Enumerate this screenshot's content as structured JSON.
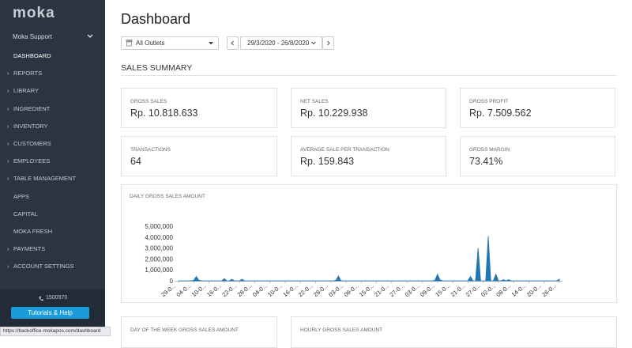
{
  "sidebar": {
    "logo": "moka",
    "account": "Moka Support",
    "menu": [
      "DASHBOARD",
      "REPORTS",
      "LIBRARY",
      "INGREDIENT",
      "INVENTORY",
      "CUSTOMERS",
      "EMPLOYEES",
      "TABLE MANAGEMENT",
      "APPS",
      "CAPITAL",
      "MOKA FRESH",
      "PAYMENTS",
      "ACCOUNT SETTINGS"
    ],
    "phone": "1500970",
    "help_button": "Tutorials & Help"
  },
  "status_bar": "https://backoffice.mokapos.com/dashboard",
  "header": {
    "title": "Dashboard",
    "outlet_filter": "All Outlets",
    "date_range": "29/3/2020 - 26/8/2020"
  },
  "section_title": "SALES SUMMARY",
  "summary_cards": [
    {
      "label": "GROSS SALES",
      "value": "Rp. 10.818.633"
    },
    {
      "label": "NET SALES",
      "value": "Rp. 10.229.938"
    },
    {
      "label": "GROSS PROFIT",
      "value": "Rp. 7.509.562"
    },
    {
      "label": "TRANSACTIONS",
      "value": "64"
    },
    {
      "label": "AVERAGE SALE PER TRANSACTION",
      "value": "Rp. 159.843"
    },
    {
      "label": "GROSS MARGIN",
      "value": "73.41%"
    }
  ],
  "chart_data": {
    "type": "area",
    "title": "DAILY GROSS SALES AMOUNT",
    "color": "#1f77b4",
    "categories": [
      "29-0...",
      null,
      null,
      null,
      null,
      null,
      "04-0...",
      null,
      null,
      null,
      null,
      null,
      "10-0...",
      null,
      null,
      null,
      null,
      null,
      "16-0...",
      null,
      null,
      null,
      null,
      null,
      "22-0...",
      null,
      null,
      null,
      null,
      null,
      "28-0...",
      null,
      null,
      null,
      null,
      null,
      "04-0...",
      null,
      null,
      null,
      null,
      null,
      "10-0...",
      null,
      null,
      null,
      null,
      null,
      "16-0...",
      null,
      null,
      null,
      null,
      null,
      "22-0...",
      null,
      null,
      null,
      null,
      null,
      "28-0...",
      null,
      null,
      null,
      null,
      null,
      "03-0...",
      null,
      null,
      null,
      null,
      null,
      "09-0...",
      null,
      null,
      null,
      null,
      null,
      "15-0...",
      null,
      null,
      null,
      null,
      null,
      "21-0...",
      null,
      null,
      null,
      null,
      null,
      "27-0...",
      null,
      null,
      null,
      null,
      null,
      "03-0...",
      null,
      null,
      null,
      null,
      null,
      "09-0...",
      null,
      null,
      null,
      null,
      null,
      "15-0...",
      null,
      null,
      null,
      null,
      null,
      "21-0...",
      null,
      null,
      null,
      null,
      null,
      "27-0...",
      null,
      null,
      null,
      null,
      null,
      "02-0...",
      null,
      null,
      null,
      null,
      null,
      "08-0...",
      null,
      null,
      null,
      null,
      null,
      "14-0...",
      null,
      null,
      null,
      null,
      null,
      "20-0...",
      null,
      null,
      null,
      null,
      null,
      "26-0..."
    ],
    "values": [
      0,
      0,
      0,
      0,
      0,
      0,
      50000,
      400000,
      50000,
      0,
      0,
      0,
      0,
      0,
      0,
      0,
      0,
      0,
      200000,
      0,
      0,
      150000,
      0,
      0,
      0,
      150000,
      0,
      0,
      0,
      0,
      0,
      0,
      0,
      0,
      0,
      0,
      0,
      0,
      0,
      0,
      0,
      0,
      0,
      0,
      0,
      0,
      0,
      0,
      0,
      0,
      0,
      0,
      0,
      0,
      0,
      0,
      0,
      0,
      0,
      0,
      0,
      0,
      50000,
      450000,
      0,
      0,
      0,
      0,
      0,
      0,
      0,
      0,
      0,
      0,
      0,
      0,
      0,
      0,
      0,
      0,
      0,
      0,
      0,
      0,
      0,
      0,
      0,
      0,
      0,
      0,
      0,
      0,
      0,
      0,
      0,
      0,
      0,
      0,
      0,
      0,
      0,
      50000,
      600000,
      100000,
      0,
      0,
      0,
      0,
      0,
      0,
      0,
      0,
      0,
      0,
      0,
      400000,
      0,
      0,
      3000000,
      0,
      0,
      0,
      4100000,
      0,
      0,
      600000,
      0,
      0,
      100000,
      0,
      100000,
      0,
      0,
      0,
      0,
      0,
      0,
      0,
      0,
      0,
      0,
      0,
      0,
      0,
      0,
      0,
      0,
      0,
      0,
      0,
      150000
    ],
    "ylim": [
      0,
      5000000
    ],
    "yticks": [
      0,
      {
        "value": 1000000,
        "label": "1,000,000"
      },
      {
        "value": 2000000,
        "label": "2,000,000"
      },
      {
        "value": 3000000,
        "label": "3,000,000"
      },
      {
        "value": 4000000,
        "label": "4,000,000"
      },
      {
        "value": 5000000,
        "label": "5,000,000"
      }
    ]
  },
  "bottom_cards": [
    "DAY OF THE WEEK GROSS SALES AMOUNT",
    "HOURLY GROSS SALES AMOUNT"
  ]
}
